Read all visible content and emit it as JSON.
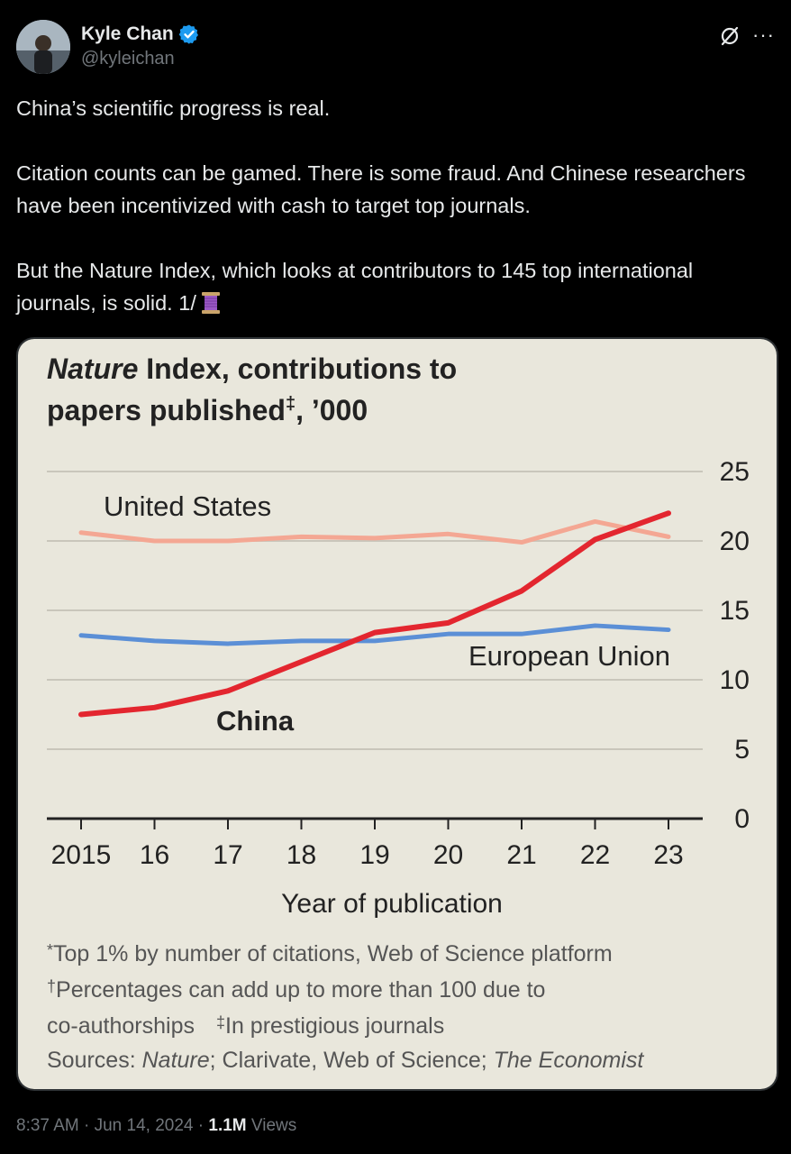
{
  "author": {
    "name": "Kyle Chan",
    "handle": "@kyleichan",
    "verified": true
  },
  "tweet": {
    "paragraphs": [
      "China’s scientific progress is real.",
      "Citation counts can be gamed. There is some fraud. And Chinese researchers have been incentivized with cash to target top journals.",
      "But the Nature Index, which looks at contributors to 145 top international journals, is solid. 1/"
    ],
    "emoji_icon": "thread-spool-icon"
  },
  "meta": {
    "time": "8:37 AM",
    "date": "Jun 14, 2024",
    "separator": "·",
    "views_count": "1.1M",
    "views_label": "Views"
  },
  "colors": {
    "accent_verified": "#1d9bf0",
    "us_line": "#f4a793",
    "eu_line": "#5b8fd6",
    "china_line": "#e3262f",
    "chart_bg": "#e9e7dc"
  },
  "chart_data": {
    "type": "line",
    "title_italic": "Nature",
    "title_rest_1": " Index, contributions to",
    "title_line2": "papers published",
    "title_mark": "‡",
    "title_suffix": ", ’000",
    "x": [
      2015,
      2016,
      2017,
      2018,
      2019,
      2020,
      2021,
      2022,
      2023
    ],
    "x_tick_labels": [
      "2015",
      "16",
      "17",
      "18",
      "19",
      "20",
      "21",
      "22",
      "23"
    ],
    "xlabel": "Year of publication",
    "ylim": [
      0,
      25
    ],
    "y_ticks": [
      0,
      5,
      10,
      15,
      20,
      25
    ],
    "y_tick_labels": [
      "0",
      "5",
      "10",
      "15",
      "20",
      "25"
    ],
    "ylabel_position": "right",
    "grid": true,
    "series": [
      {
        "name": "United States",
        "label": "United States",
        "color": "#f4a793",
        "values": [
          20.6,
          20.0,
          20.0,
          20.3,
          20.2,
          20.5,
          19.9,
          21.4,
          20.3
        ]
      },
      {
        "name": "European Union",
        "label": "European Union",
        "color": "#5b8fd6",
        "values": [
          13.2,
          12.8,
          12.6,
          12.8,
          12.8,
          13.3,
          13.3,
          13.9,
          13.6
        ]
      },
      {
        "name": "China",
        "label": "China",
        "color": "#e3262f",
        "values": [
          7.5,
          8.0,
          9.2,
          11.3,
          13.4,
          14.1,
          16.4,
          20.1,
          22.0
        ]
      }
    ],
    "footnotes": {
      "f1_mark": "*",
      "f1": "Top 1% by number of citations, Web of Science platform",
      "f2_mark": "†",
      "f2": "Percentages can add up to more than 100 due to",
      "f3": "co-authorships",
      "f3b_mark": "‡",
      "f3b": "In prestigious journals",
      "sources_label": "Sources: ",
      "src1": "Nature",
      "src_sep1": "; Clarivate, Web of Science; ",
      "src2": "The Economist"
    }
  }
}
